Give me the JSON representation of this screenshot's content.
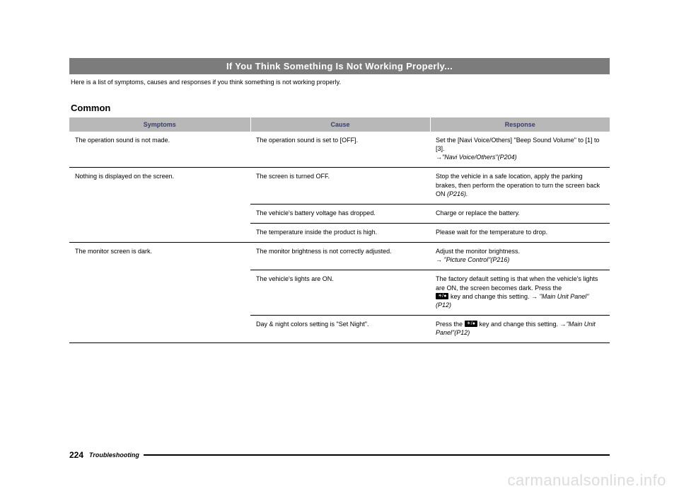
{
  "title": "If You Think Something Is Not Working Properly...",
  "intro": "Here is a list of symptoms, causes and responses if you think something is not working properly.",
  "section": "Common",
  "columns": [
    "Symptoms",
    "Cause",
    "Response"
  ],
  "footer": {
    "page": "224",
    "section": "Troubleshooting"
  },
  "watermark": "carmanualsonline.info",
  "rows": {
    "r1": {
      "symptom": "The operation sound is not made.",
      "cause": "The operation sound is set to [OFF].",
      "resp_a": "Set the [Navi Voice/Others] \"Beep Sound Volume\" to [1] to [3].",
      "resp_b": "→\"Navi Voice/Others\"(P204)"
    },
    "r2": {
      "symptom": "Nothing is displayed on the screen.",
      "cause1": "The screen is turned OFF.",
      "resp1_a": "Stop the vehicle in a safe location, apply the parking brakes, then perform the operation to turn the screen back ON ",
      "resp1_b": "(P216).",
      "cause2": "The vehicle's battery voltage has dropped.",
      "resp2": "Charge or replace the battery.",
      "cause3": "The temperature inside the product is high.",
      "resp3": "Please wait for the temperature to drop."
    },
    "r3": {
      "symptom": "The monitor screen is dark.",
      "cause1": "The monitor brightness is not correctly adjusted.",
      "resp1_a": "Adjust the monitor brightness.",
      "resp1_b": "→ \"Picture Control\"(P216)",
      "cause2": "The vehicle's lights are ON.",
      "resp2_a": "The factory default setting is that when the vehicle's lights are ON, the screen becomes dark. Press the ",
      "resp2_b": " key and change this setting. → ",
      "resp2_c": "\"Main Unit Panel\"(P12)",
      "cause3": "Day & night colors setting is \"Set Night\".",
      "resp3_a": "Press the ",
      "resp3_b": " key and change this setting. →",
      "resp3_c": "\"Main Unit Panel\"(P12)"
    }
  },
  "key_label": "☀/●"
}
